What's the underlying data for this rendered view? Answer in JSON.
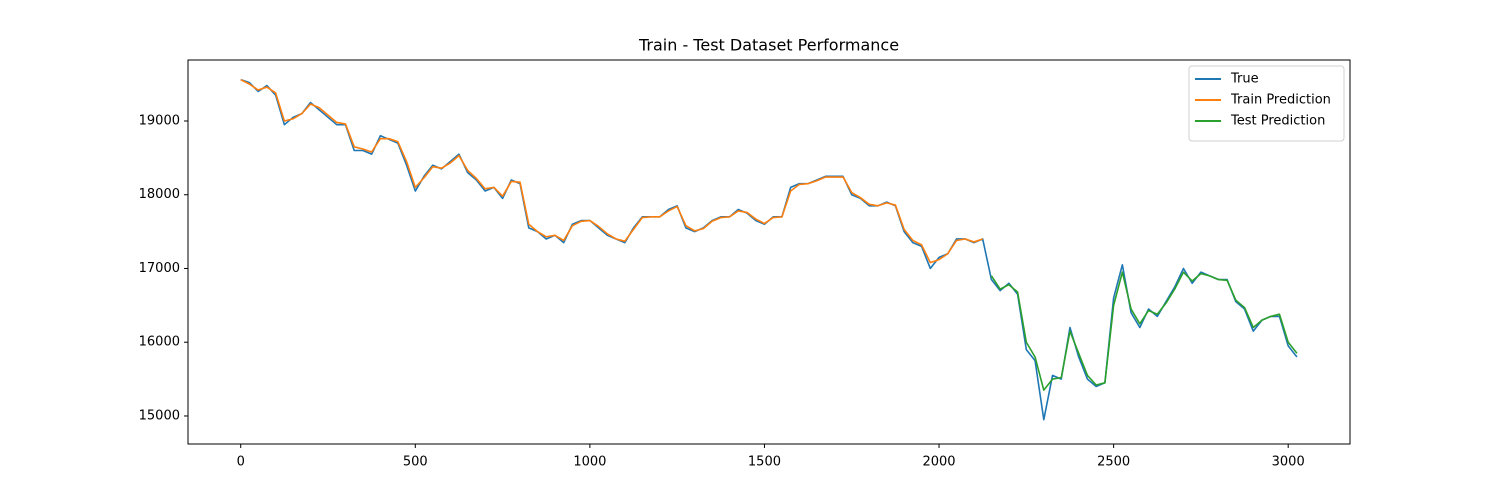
{
  "chart_data": {
    "type": "line",
    "title": "Train - Test Dataset Performance",
    "x": [
      0,
      25,
      50,
      75,
      100,
      125,
      150,
      175,
      200,
      225,
      250,
      275,
      300,
      325,
      350,
      375,
      400,
      425,
      450,
      475,
      500,
      525,
      550,
      575,
      600,
      625,
      650,
      675,
      700,
      725,
      750,
      775,
      800,
      825,
      850,
      875,
      900,
      925,
      950,
      975,
      1000,
      1025,
      1050,
      1075,
      1100,
      1125,
      1150,
      1175,
      1200,
      1225,
      1250,
      1275,
      1300,
      1325,
      1350,
      1375,
      1400,
      1425,
      1450,
      1475,
      1500,
      1525,
      1550,
      1575,
      1600,
      1625,
      1650,
      1675,
      1700,
      1725,
      1750,
      1775,
      1800,
      1825,
      1850,
      1875,
      1900,
      1925,
      1950,
      1975,
      2000,
      2025,
      2050,
      2075,
      2100,
      2125,
      2150,
      2175,
      2200,
      2225,
      2250,
      2275,
      2300,
      2325,
      2350,
      2375,
      2400,
      2425,
      2450,
      2475,
      2500,
      2525,
      2550,
      2575,
      2600,
      2625,
      2650,
      2675,
      2700,
      2725,
      2750,
      2775,
      2800,
      2825,
      2850,
      2875,
      2900,
      2925,
      2950,
      2975,
      3000,
      3025
    ],
    "series": [
      {
        "name": "True",
        "color": "#1f77b4",
        "values": [
          19560,
          19520,
          19400,
          19480,
          19350,
          18950,
          19050,
          19100,
          19250,
          19150,
          19050,
          18950,
          18950,
          18600,
          18600,
          18550,
          18800,
          18750,
          18700,
          18400,
          18050,
          18250,
          18400,
          18350,
          18450,
          18550,
          18300,
          18200,
          18050,
          18100,
          17950,
          18200,
          18150,
          17550,
          17500,
          17400,
          17450,
          17350,
          17600,
          17650,
          17650,
          17550,
          17450,
          17400,
          17350,
          17550,
          17700,
          17700,
          17700,
          17800,
          17850,
          17550,
          17500,
          17550,
          17650,
          17700,
          17700,
          17800,
          17750,
          17650,
          17600,
          17700,
          17700,
          18100,
          18150,
          18150,
          18200,
          18250,
          18250,
          18250,
          18000,
          17950,
          17850,
          17850,
          17900,
          17850,
          17500,
          17350,
          17300,
          17000,
          17150,
          17200,
          17400,
          17400,
          17350,
          17400,
          16850,
          16700,
          16800,
          16650,
          15900,
          15750,
          14950,
          15550,
          15500,
          16200,
          15800,
          15500,
          15400,
          15450,
          16600,
          17050,
          16400,
          16200,
          16450,
          16350,
          16550,
          16750,
          17000,
          16800,
          16950,
          16900,
          16850,
          16850,
          16550,
          16450,
          16150,
          16300,
          16350,
          16350,
          15950,
          15800
        ]
      },
      {
        "name": "Train Prediction",
        "color": "#ff7f0e",
        "values": [
          19560,
          19500,
          19420,
          19460,
          19380,
          19000,
          19030,
          19100,
          19230,
          19180,
          19080,
          18980,
          18960,
          18650,
          18620,
          18580,
          18760,
          18760,
          18720,
          18450,
          18100,
          18230,
          18380,
          18360,
          18430,
          18530,
          18330,
          18220,
          18080,
          18100,
          17980,
          18180,
          18170,
          17600,
          17500,
          17430,
          17450,
          17380,
          17580,
          17640,
          17650,
          17570,
          17470,
          17400,
          17370,
          17530,
          17690,
          17700,
          17700,
          17780,
          17840,
          17580,
          17510,
          17540,
          17640,
          17690,
          17700,
          17780,
          17760,
          17670,
          17610,
          17690,
          17700,
          18050,
          18140,
          18150,
          18190,
          18240,
          18240,
          18240,
          18030,
          17960,
          17870,
          17850,
          17890,
          17860,
          17530,
          17380,
          17320,
          17080,
          17120,
          17200,
          17380,
          17400,
          17360,
          17400,
          null,
          null,
          null,
          null,
          null,
          null,
          null,
          null,
          null,
          null,
          null,
          null,
          null,
          null,
          null,
          null,
          null,
          null,
          null,
          null,
          null,
          null,
          null,
          null,
          null,
          null,
          null,
          null,
          null,
          null,
          null,
          null,
          null,
          null,
          null,
          null
        ]
      },
      {
        "name": "Test Prediction",
        "color": "#2ca02c",
        "values": [
          null,
          null,
          null,
          null,
          null,
          null,
          null,
          null,
          null,
          null,
          null,
          null,
          null,
          null,
          null,
          null,
          null,
          null,
          null,
          null,
          null,
          null,
          null,
          null,
          null,
          null,
          null,
          null,
          null,
          null,
          null,
          null,
          null,
          null,
          null,
          null,
          null,
          null,
          null,
          null,
          null,
          null,
          null,
          null,
          null,
          null,
          null,
          null,
          null,
          null,
          null,
          null,
          null,
          null,
          null,
          null,
          null,
          null,
          null,
          null,
          null,
          null,
          null,
          null,
          null,
          null,
          null,
          null,
          null,
          null,
          null,
          null,
          null,
          null,
          null,
          null,
          null,
          null,
          null,
          null,
          null,
          null,
          null,
          null,
          null,
          null,
          16900,
          16720,
          16780,
          16680,
          16000,
          15800,
          15350,
          15500,
          15520,
          16150,
          15850,
          15550,
          15420,
          15450,
          16500,
          16950,
          16450,
          16250,
          16430,
          16380,
          16530,
          16720,
          16950,
          16830,
          16930,
          16900,
          16850,
          16840,
          16570,
          16470,
          16200,
          16300,
          16350,
          16380,
          16000,
          15850
        ]
      }
    ],
    "xlim": [
      -151,
      3177
    ],
    "ylim": [
      14620,
      19827
    ],
    "xticks": [
      0,
      500,
      1000,
      1500,
      2000,
      2500,
      3000
    ],
    "yticks": [
      15000,
      16000,
      17000,
      18000,
      19000
    ],
    "legend": "upper right"
  }
}
